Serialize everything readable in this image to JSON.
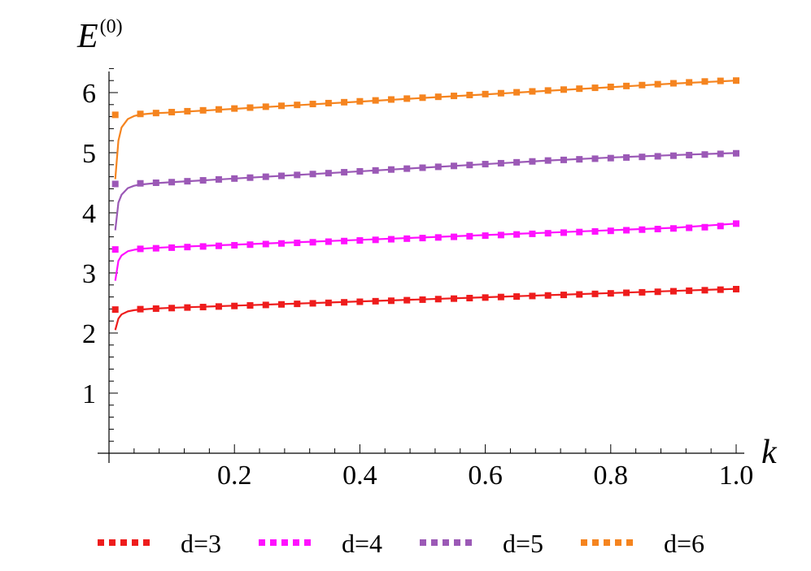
{
  "chart_data": {
    "type": "line",
    "xlabel": "k",
    "ylabel": "E",
    "ylabel_superscript": "(0)",
    "xlim": [
      0,
      1.0
    ],
    "ylim": [
      0,
      6.5
    ],
    "x_ticks": [
      0.2,
      0.4,
      0.6,
      0.8,
      1.0
    ],
    "x_tick_labels": [
      "0.2",
      "0.4",
      "0.6",
      "0.8",
      "1.0"
    ],
    "y_ticks": [
      1,
      2,
      3,
      4,
      5,
      6
    ],
    "y_tick_labels": [
      "1",
      "2",
      "3",
      "4",
      "5",
      "6"
    ],
    "grid": false,
    "legend_position": "bottom",
    "series": [
      {
        "name": "d=3",
        "color": "#ee1c1c",
        "curve_x": [
          0.01,
          0.015,
          0.02,
          0.03,
          0.04,
          0.05,
          0.07,
          0.1,
          0.2,
          0.3,
          0.4,
          0.5,
          0.6,
          0.7,
          0.8,
          0.9,
          1.0
        ],
        "curve_y": [
          2.05,
          2.24,
          2.31,
          2.36,
          2.38,
          2.39,
          2.405,
          2.42,
          2.455,
          2.49,
          2.525,
          2.56,
          2.595,
          2.63,
          2.665,
          2.7,
          2.735
        ],
        "points_x": [
          0.01,
          0.05,
          0.075,
          0.1,
          0.125,
          0.15,
          0.175,
          0.2,
          0.225,
          0.25,
          0.275,
          0.3,
          0.325,
          0.35,
          0.375,
          0.4,
          0.425,
          0.45,
          0.475,
          0.5,
          0.525,
          0.55,
          0.575,
          0.6,
          0.625,
          0.65,
          0.675,
          0.7,
          0.725,
          0.75,
          0.775,
          0.8,
          0.825,
          0.85,
          0.875,
          0.9,
          0.925,
          0.95,
          0.975,
          1.0
        ],
        "points_y": [
          2.39,
          2.397,
          2.406,
          2.415,
          2.424,
          2.432,
          2.441,
          2.45,
          2.459,
          2.467,
          2.476,
          2.485,
          2.494,
          2.502,
          2.511,
          2.52,
          2.529,
          2.537,
          2.546,
          2.555,
          2.564,
          2.572,
          2.581,
          2.59,
          2.599,
          2.607,
          2.616,
          2.625,
          2.634,
          2.642,
          2.651,
          2.66,
          2.669,
          2.677,
          2.686,
          2.695,
          2.704,
          2.712,
          2.721,
          2.73
        ]
      },
      {
        "name": "d=4",
        "color": "#ff10ff",
        "curve_x": [
          0.01,
          0.015,
          0.02,
          0.03,
          0.04,
          0.05,
          0.07,
          0.1,
          0.2,
          0.3,
          0.4,
          0.5,
          0.6,
          0.7,
          0.8,
          0.9,
          1.0
        ],
        "curve_y": [
          2.87,
          3.2,
          3.29,
          3.36,
          3.385,
          3.4,
          3.415,
          3.43,
          3.47,
          3.51,
          3.55,
          3.59,
          3.63,
          3.67,
          3.71,
          3.75,
          3.82
        ],
        "points_x": [
          0.01,
          0.05,
          0.075,
          0.1,
          0.125,
          0.15,
          0.175,
          0.2,
          0.225,
          0.25,
          0.275,
          0.3,
          0.325,
          0.35,
          0.375,
          0.4,
          0.425,
          0.45,
          0.475,
          0.5,
          0.525,
          0.55,
          0.575,
          0.6,
          0.625,
          0.65,
          0.675,
          0.7,
          0.725,
          0.75,
          0.775,
          0.8,
          0.825,
          0.85,
          0.875,
          0.9,
          0.925,
          0.95,
          0.975,
          1.0
        ],
        "points_y": [
          3.39,
          3.4,
          3.41,
          3.42,
          3.43,
          3.44,
          3.45,
          3.46,
          3.47,
          3.48,
          3.49,
          3.5,
          3.51,
          3.52,
          3.53,
          3.54,
          3.55,
          3.56,
          3.57,
          3.58,
          3.59,
          3.6,
          3.61,
          3.62,
          3.63,
          3.64,
          3.65,
          3.66,
          3.67,
          3.68,
          3.69,
          3.7,
          3.71,
          3.72,
          3.73,
          3.74,
          3.75,
          3.76,
          3.78,
          3.82
        ]
      },
      {
        "name": "d=5",
        "color": "#9b59b6",
        "curve_x": [
          0.01,
          0.015,
          0.02,
          0.03,
          0.04,
          0.05,
          0.07,
          0.1,
          0.2,
          0.3,
          0.4,
          0.5,
          0.6,
          0.7,
          0.8,
          0.9,
          1.0
        ],
        "curve_y": [
          3.71,
          4.17,
          4.3,
          4.41,
          4.45,
          4.47,
          4.49,
          4.51,
          4.57,
          4.63,
          4.69,
          4.75,
          4.81,
          4.87,
          4.92,
          4.96,
          4.995
        ],
        "points_x": [
          0.01,
          0.05,
          0.075,
          0.1,
          0.125,
          0.15,
          0.175,
          0.2,
          0.225,
          0.25,
          0.275,
          0.3,
          0.325,
          0.35,
          0.375,
          0.4,
          0.425,
          0.45,
          0.475,
          0.5,
          0.525,
          0.55,
          0.575,
          0.6,
          0.625,
          0.65,
          0.675,
          0.7,
          0.725,
          0.75,
          0.775,
          0.8,
          0.825,
          0.85,
          0.875,
          0.9,
          0.925,
          0.95,
          0.975,
          1.0
        ],
        "points_y": [
          4.48,
          4.49,
          4.5,
          4.51,
          4.525,
          4.54,
          4.555,
          4.57,
          4.585,
          4.6,
          4.615,
          4.63,
          4.645,
          4.66,
          4.675,
          4.69,
          4.705,
          4.72,
          4.735,
          4.75,
          4.765,
          4.78,
          4.795,
          4.81,
          4.825,
          4.84,
          4.855,
          4.87,
          4.88,
          4.89,
          4.9,
          4.91,
          4.92,
          4.93,
          4.94,
          4.95,
          4.96,
          4.97,
          4.98,
          4.99
        ]
      },
      {
        "name": "d=6",
        "color": "#f5841f",
        "curve_x": [
          0.01,
          0.015,
          0.02,
          0.03,
          0.04,
          0.05,
          0.07,
          0.1,
          0.2,
          0.3,
          0.4,
          0.5,
          0.6,
          0.7,
          0.8,
          0.9,
          1.0
        ],
        "curve_y": [
          4.56,
          5.2,
          5.42,
          5.56,
          5.61,
          5.635,
          5.655,
          5.67,
          5.73,
          5.79,
          5.85,
          5.91,
          5.97,
          6.03,
          6.09,
          6.15,
          6.2
        ],
        "points_x": [
          0.01,
          0.05,
          0.075,
          0.1,
          0.125,
          0.15,
          0.175,
          0.2,
          0.225,
          0.25,
          0.275,
          0.3,
          0.325,
          0.35,
          0.375,
          0.4,
          0.425,
          0.45,
          0.475,
          0.5,
          0.525,
          0.55,
          0.575,
          0.6,
          0.625,
          0.65,
          0.675,
          0.7,
          0.725,
          0.75,
          0.775,
          0.8,
          0.825,
          0.85,
          0.875,
          0.9,
          0.925,
          0.95,
          0.975,
          1.0
        ],
        "points_y": [
          5.63,
          5.645,
          5.66,
          5.675,
          5.69,
          5.705,
          5.72,
          5.735,
          5.75,
          5.765,
          5.78,
          5.795,
          5.81,
          5.825,
          5.84,
          5.855,
          5.87,
          5.885,
          5.9,
          5.915,
          5.93,
          5.945,
          5.96,
          5.975,
          5.99,
          6.005,
          6.02,
          6.035,
          6.05,
          6.065,
          6.08,
          6.095,
          6.11,
          6.125,
          6.14,
          6.155,
          6.17,
          6.185,
          6.195,
          6.2
        ]
      }
    ]
  }
}
